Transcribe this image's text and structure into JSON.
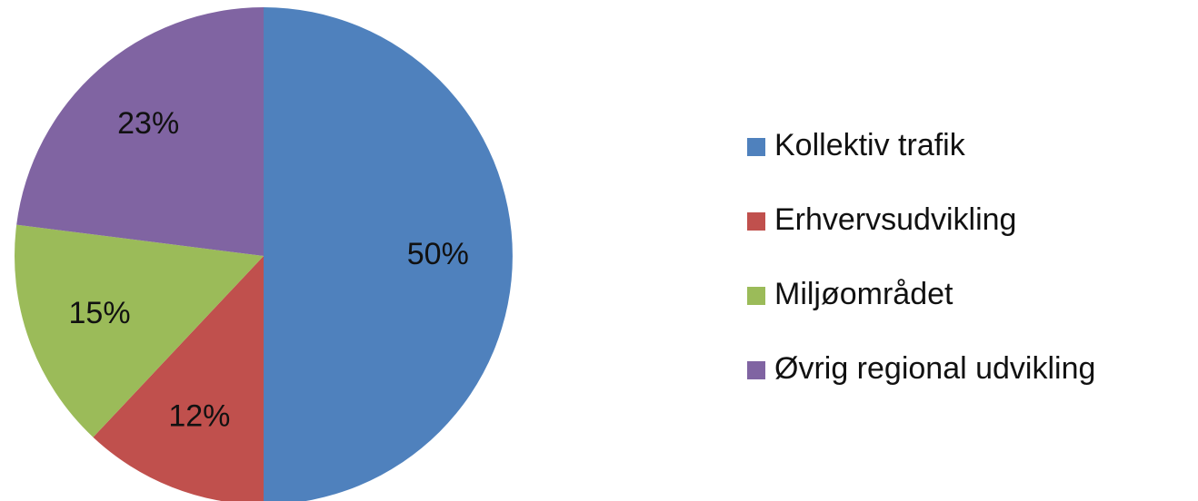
{
  "chart_data": {
    "type": "pie",
    "categories": [
      "Kollektiv trafik",
      "Erhvervsudvikling",
      "Miljøområdet",
      "Øvrig regional udvikling"
    ],
    "values": [
      50,
      12,
      15,
      23
    ],
    "value_labels": [
      "50%",
      "12%",
      "15%",
      "23%"
    ],
    "colors": [
      "#4f81bd",
      "#c0504d",
      "#9bbb59",
      "#8064a2"
    ],
    "legend": "right"
  }
}
